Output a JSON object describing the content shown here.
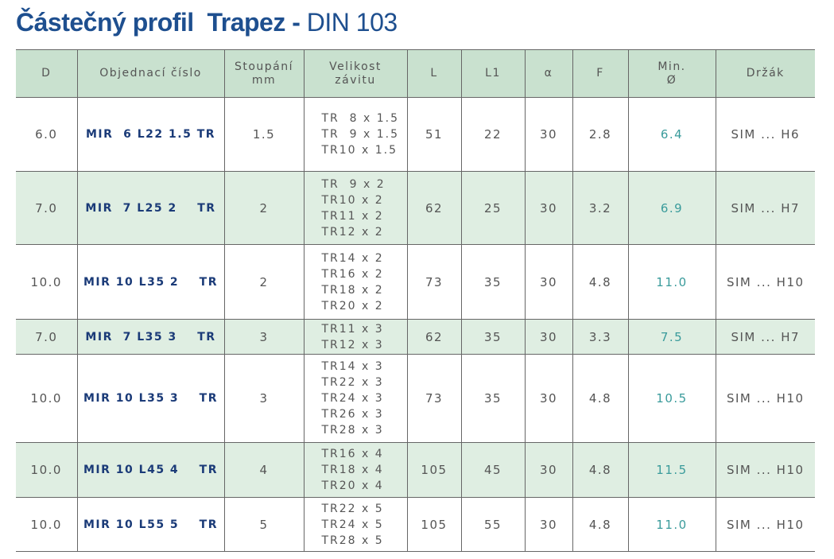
{
  "title": {
    "bold": "Částečný profil  Trapez -",
    "normal": "DIN 103"
  },
  "table": {
    "header": [
      [
        "D"
      ],
      [
        "Objednací číslo"
      ],
      [
        "Stoupání",
        "mm"
      ],
      [
        "Velikost",
        "závitu"
      ],
      [
        "L"
      ],
      [
        "L1"
      ],
      [
        "α"
      ],
      [
        "F"
      ],
      [
        "Min.",
        "Ø"
      ],
      [
        "Držák"
      ]
    ],
    "rows": [
      [
        "6.0",
        "MIR  6 L22 1.5 TR",
        "1.5",
        [
          "TR  8 x 1.5",
          "TR  9 x 1.5",
          "TR10 x 1.5"
        ],
        "51",
        "22",
        "30",
        "2.8",
        "6.4",
        "SIM ... H6"
      ],
      [
        "7.0",
        "MIR  7 L25 2    TR",
        "2",
        [
          "TR  9 x 2",
          "TR10 x 2",
          "TR11 x 2",
          "TR12 x 2"
        ],
        "62",
        "25",
        "30",
        "3.2",
        "6.9",
        "SIM ... H7"
      ],
      [
        "10.0",
        "MIR 10 L35 2    TR",
        "2",
        [
          "TR14 x 2",
          "TR16 x 2",
          "TR18 x 2",
          "TR20 x 2"
        ],
        "73",
        "35",
        "30",
        "4.8",
        "11.0",
        "SIM ... H10"
      ],
      [
        "7.0",
        "MIR  7 L35 3    TR",
        "3",
        [
          "TR11 x 3",
          "TR12 x 3"
        ],
        "62",
        "35",
        "30",
        "3.3",
        "7.5",
        "SIM ... H7"
      ],
      [
        "10.0",
        "MIR 10 L35 3    TR",
        "3",
        [
          "TR14 x 3",
          "TR22 x 3",
          "TR24 x 3",
          "TR26 x 3",
          "TR28 x 3"
        ],
        "73",
        "35",
        "30",
        "4.8",
        "10.5",
        "SIM ... H10"
      ],
      [
        "10.0",
        "MIR 10 L45 4    TR",
        "4",
        [
          "TR16 x 4",
          "TR18 x 4",
          "TR20 x 4"
        ],
        "105",
        "45",
        "30",
        "4.8",
        "11.5",
        "SIM ... H10"
      ],
      [
        "10.0",
        "MIR 10 L55 5    TR",
        "5",
        [
          "TR22 x 5",
          "TR24 x 5",
          "TR28 x 5"
        ],
        "105",
        "55",
        "30",
        "4.8",
        "11.0",
        "SIM ... H10"
      ]
    ]
  }
}
